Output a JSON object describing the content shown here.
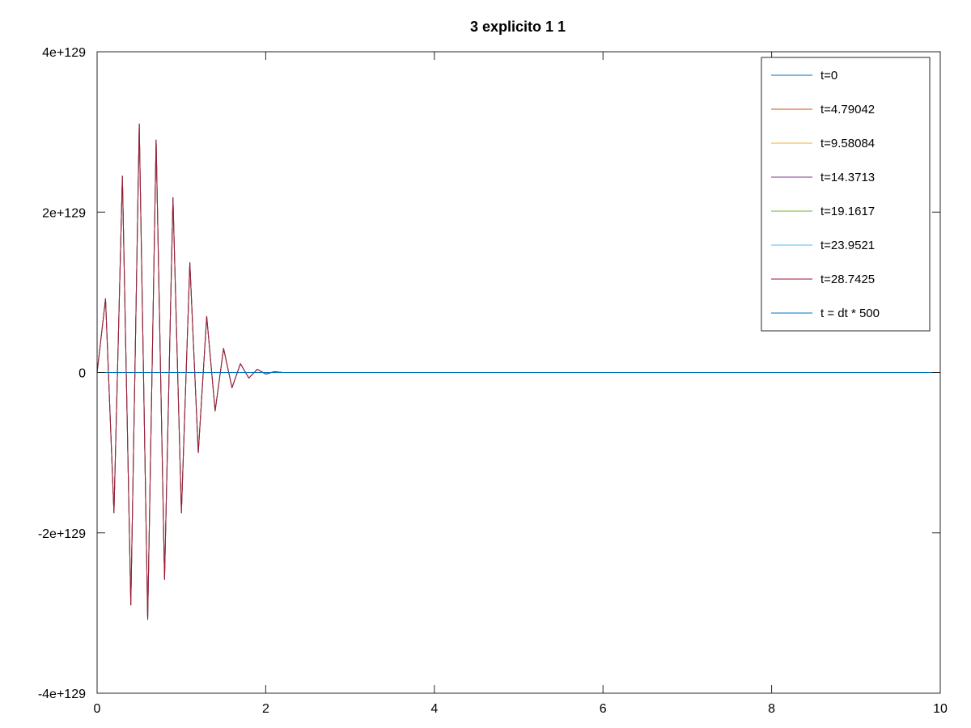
{
  "chart_data": {
    "type": "line",
    "title": "3 explicito 1 1",
    "xlabel": "",
    "ylabel": "",
    "xlim": [
      0,
      10
    ],
    "ylim": [
      -4e+129,
      4e+129
    ],
    "xticks": [
      {
        "value": 0,
        "label": "0"
      },
      {
        "value": 2,
        "label": "2"
      },
      {
        "value": 4,
        "label": "4"
      },
      {
        "value": 6,
        "label": "6"
      },
      {
        "value": 8,
        "label": "8"
      },
      {
        "value": 10,
        "label": "10"
      }
    ],
    "yticks": [
      {
        "value": 4e+129,
        "label": "4e+129"
      },
      {
        "value": 2e+129,
        "label": "2e+129"
      },
      {
        "value": 0,
        "label": "0"
      },
      {
        "value": -2e+129,
        "label": "-2e+129"
      },
      {
        "value": -4e+129,
        "label": "-4e+129"
      }
    ],
    "grid": false,
    "legend_position": "top-right",
    "oscillation_series": {
      "x": [
        0,
        0.1,
        0.2,
        0.3,
        0.4,
        0.5,
        0.6,
        0.7,
        0.8,
        0.9,
        1.0,
        1.1,
        1.2,
        1.3,
        1.4,
        1.5,
        1.6,
        1.7,
        1.8,
        1.9,
        2.0,
        2.1,
        2.2,
        10
      ],
      "y": [
        0,
        9.2e+128,
        -1.75e+129,
        2.45e+129,
        -2.9e+129,
        3.1e+129,
        -3.08e+129,
        2.9e+129,
        -2.58e+129,
        2.18e+129,
        -1.75e+129,
        1.37e+129,
        -1e+129,
        7e+128,
        -4.8e+128,
        3e+128,
        -1.9e+128,
        1.1e+128,
        -7e+127,
        4e+127,
        -2e+127,
        1e+127,
        0,
        0
      ]
    },
    "series": [
      {
        "name": "t=0",
        "color": "#0072bd",
        "shape": "zero"
      },
      {
        "name": "t=4.79042",
        "color": "#d95319",
        "shape": "oscillation"
      },
      {
        "name": "t=9.58084",
        "color": "#edb120",
        "shape": "oscillation"
      },
      {
        "name": "t=14.3713",
        "color": "#7e2f8e",
        "shape": "oscillation"
      },
      {
        "name": "t=19.1617",
        "color": "#77ac30",
        "shape": "oscillation"
      },
      {
        "name": "t=23.9521",
        "color": "#4dbeee",
        "shape": "oscillation"
      },
      {
        "name": "t=28.7425",
        "color": "#a2142f",
        "shape": "oscillation"
      },
      {
        "name": "t = dt * 500",
        "color": "#0072bd",
        "shape": "zero"
      }
    ]
  }
}
